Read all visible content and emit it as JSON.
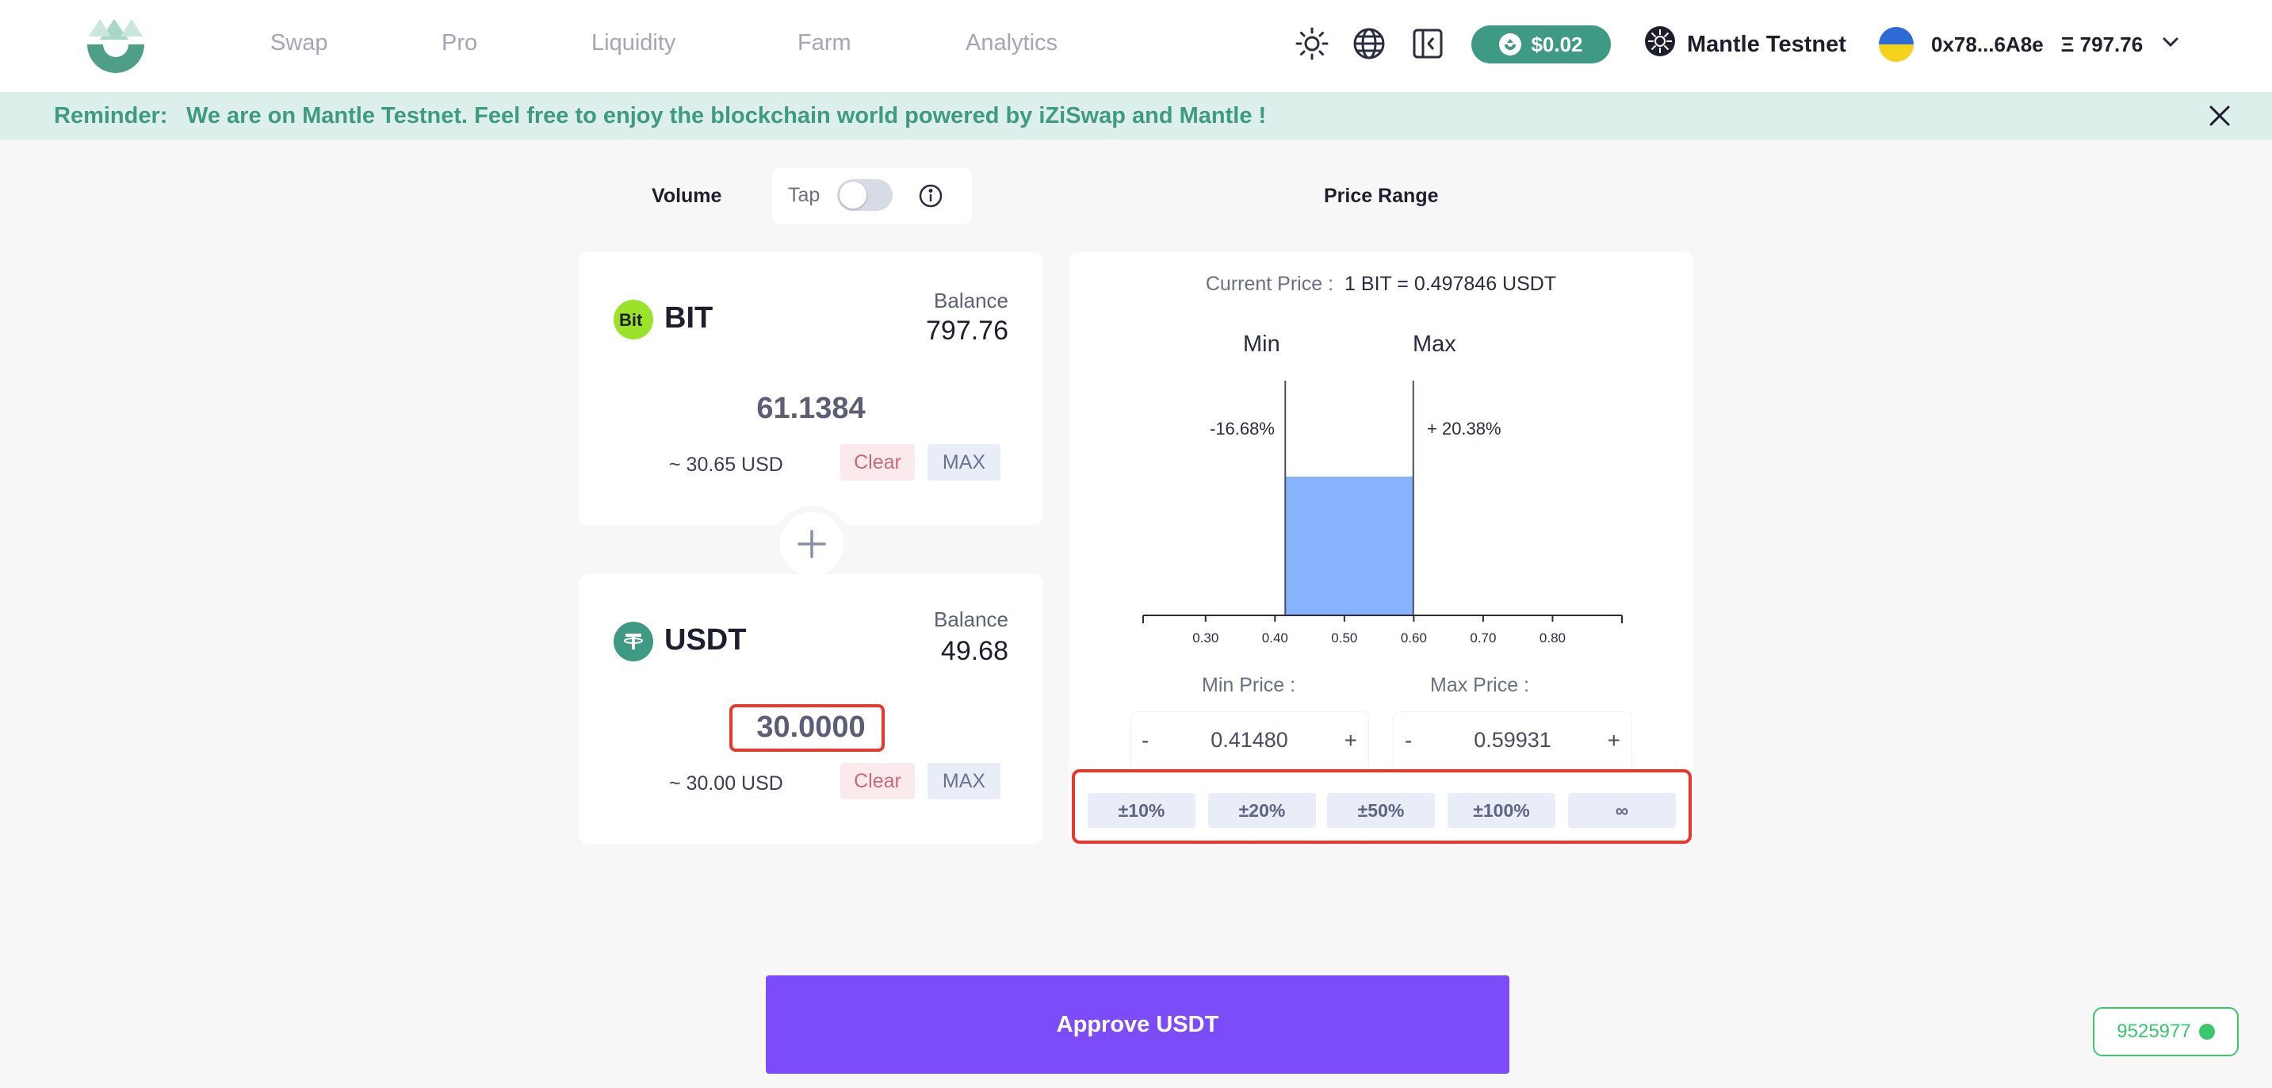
{
  "header": {
    "nav": [
      "Swap",
      "Pro",
      "Liquidity",
      "Farm",
      "Analytics"
    ],
    "token_price": "$0.02",
    "network": "Mantle Testnet",
    "account": {
      "address": "0x78...6A8e",
      "balance": "797.76",
      "currency_symbol": "Ξ"
    },
    "icons": [
      "theme-sun-icon",
      "language-globe-icon",
      "sidebar-collapse-icon"
    ]
  },
  "banner": {
    "label": "Reminder:",
    "text": "We are on Mantle Testnet. Feel free to enjoy the blockchain world powered by iZiSwap and Mantle !"
  },
  "volume": {
    "title": "Volume",
    "tap_label": "Tap",
    "tap_enabled": false
  },
  "token_a": {
    "symbol": "BIT",
    "balance_label": "Balance",
    "balance": "797.76",
    "amount": "61.1384",
    "usd": "~ 30.65 USD",
    "clear_label": "Clear",
    "max_label": "MAX",
    "logo_color": "#9be32a"
  },
  "token_b": {
    "symbol": "USDT",
    "balance_label": "Balance",
    "balance": "49.68",
    "amount": "30.0000",
    "usd": "~ 30.00 USD",
    "clear_label": "Clear",
    "max_label": "MAX",
    "logo_color": "#3f9a83"
  },
  "price_range": {
    "title": "Price Range",
    "current_price_label": "Current Price :",
    "current_price": "1 BIT = 0.497846 USDT",
    "min_label": "Min",
    "max_label": "Max",
    "min_pct": "-16.68%",
    "max_pct": "+ 20.38%",
    "min_price_label": "Min Price :",
    "max_price_label": "Max Price :",
    "min_price": "0.41480",
    "max_price": "0.59931",
    "minus": "-",
    "plus": "+",
    "presets": [
      "±10%",
      "±20%",
      "±50%",
      "±100%",
      "∞"
    ]
  },
  "chart_data": {
    "type": "area",
    "x_ticks": [
      "0.30",
      "0.40",
      "0.50",
      "0.60",
      "0.70",
      "0.80"
    ],
    "xlim": [
      0.21,
      0.9
    ],
    "range_min": 0.4148,
    "range_max": 0.59931,
    "current_price": 0.497846,
    "fill_color": "#86b3fb"
  },
  "approve_label": "Approve USDT",
  "block_number": "9525977"
}
